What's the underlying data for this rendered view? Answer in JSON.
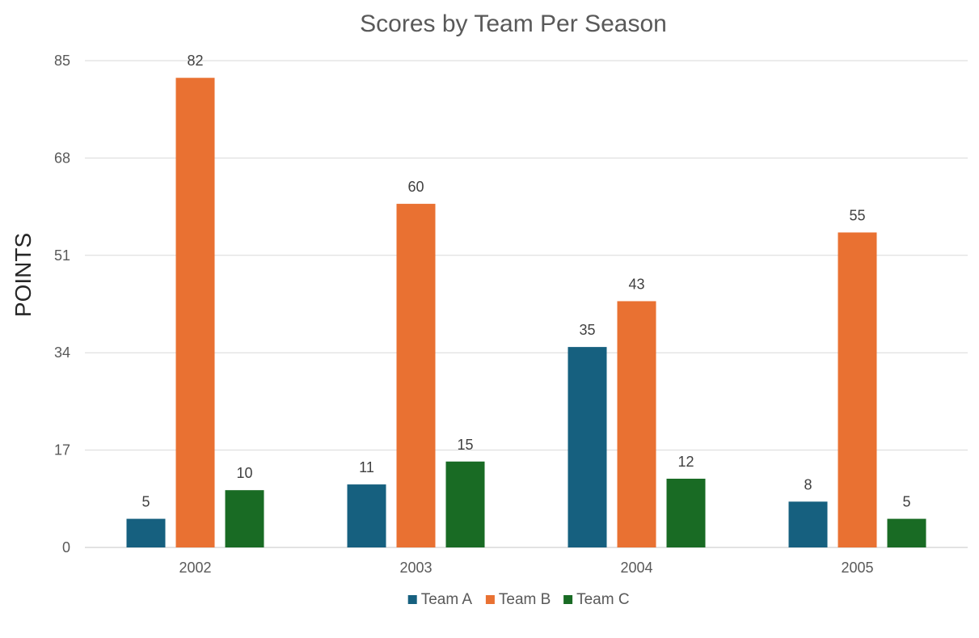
{
  "chart_data": {
    "type": "bar",
    "title": "Scores by Team Per Season",
    "xlabel": "",
    "ylabel": "POINTS",
    "categories": [
      "2002",
      "2003",
      "2004",
      "2005"
    ],
    "series": [
      {
        "name": "Team A",
        "color": "#16607f",
        "values": [
          5,
          11,
          35,
          8
        ]
      },
      {
        "name": "Team B",
        "color": "#e97132",
        "values": [
          82,
          60,
          43,
          55
        ]
      },
      {
        "name": "Team C",
        "color": "#196b24",
        "values": [
          10,
          15,
          12,
          5
        ]
      }
    ],
    "ylim": [
      0,
      85
    ],
    "yticks": [
      0,
      17,
      34,
      51,
      68,
      85
    ],
    "grid": true,
    "legend_position": "bottom",
    "data_labels": true
  }
}
